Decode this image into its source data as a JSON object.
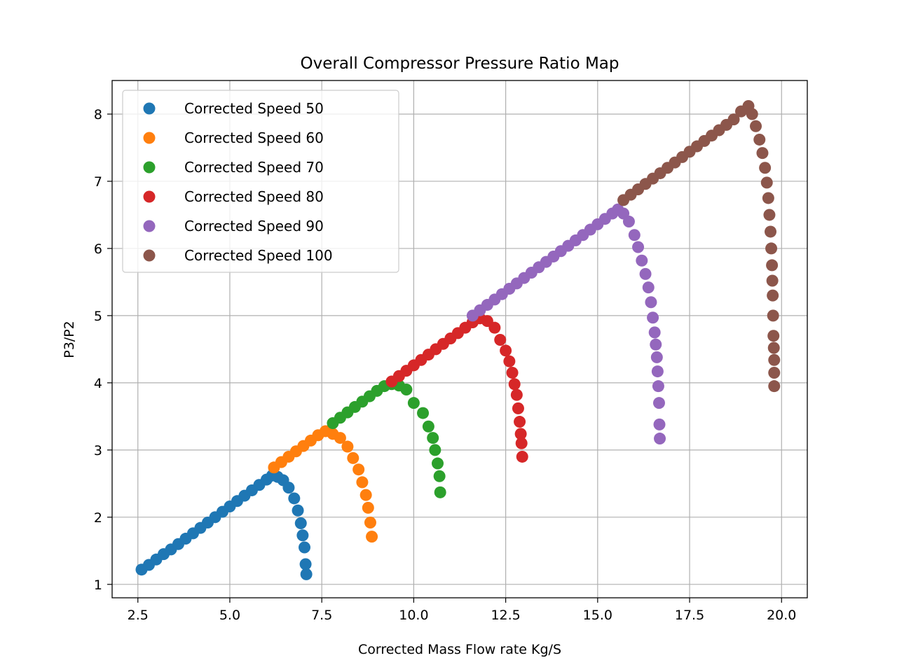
{
  "chart_data": {
    "type": "scatter",
    "title": "Overall Compressor Pressure Ratio Map",
    "xlabel": "Corrected Mass Flow rate Kg/S",
    "ylabel": "P3/P2",
    "xlim": [
      1.8,
      20.7
    ],
    "ylim": [
      0.8,
      8.5
    ],
    "xticks": [
      2.5,
      5.0,
      7.5,
      10.0,
      12.5,
      15.0,
      17.5,
      20.0
    ],
    "xtick_labels": [
      "2.5",
      "5.0",
      "7.5",
      "10.0",
      "12.5",
      "15.0",
      "17.5",
      "20.0"
    ],
    "yticks": [
      1,
      2,
      3,
      4,
      5,
      6,
      7,
      8
    ],
    "ytick_labels": [
      "1",
      "2",
      "3",
      "4",
      "5",
      "6",
      "7",
      "8"
    ],
    "grid": true,
    "legend_position": "top-left",
    "series": [
      {
        "name": "Corrected Speed 50",
        "color": "#1f77b4",
        "points": [
          [
            2.6,
            1.22
          ],
          [
            2.8,
            1.29
          ],
          [
            3.0,
            1.37
          ],
          [
            3.2,
            1.45
          ],
          [
            3.4,
            1.52
          ],
          [
            3.6,
            1.6
          ],
          [
            3.8,
            1.68
          ],
          [
            4.0,
            1.76
          ],
          [
            4.2,
            1.84
          ],
          [
            4.4,
            1.92
          ],
          [
            4.6,
            2.0
          ],
          [
            4.8,
            2.08
          ],
          [
            5.0,
            2.16
          ],
          [
            5.2,
            2.24
          ],
          [
            5.4,
            2.32
          ],
          [
            5.6,
            2.4
          ],
          [
            5.8,
            2.48
          ],
          [
            6.0,
            2.56
          ],
          [
            6.15,
            2.62
          ],
          [
            6.3,
            2.6
          ],
          [
            6.45,
            2.55
          ],
          [
            6.6,
            2.44
          ],
          [
            6.75,
            2.28
          ],
          [
            6.85,
            2.1
          ],
          [
            6.93,
            1.91
          ],
          [
            6.98,
            1.73
          ],
          [
            7.03,
            1.55
          ],
          [
            7.06,
            1.3
          ],
          [
            7.08,
            1.15
          ]
        ]
      },
      {
        "name": "Corrected Speed 60",
        "color": "#ff7f0e",
        "points": [
          [
            6.2,
            2.74
          ],
          [
            6.4,
            2.82
          ],
          [
            6.6,
            2.9
          ],
          [
            6.8,
            2.98
          ],
          [
            7.0,
            3.06
          ],
          [
            7.2,
            3.14
          ],
          [
            7.4,
            3.22
          ],
          [
            7.6,
            3.28
          ],
          [
            7.8,
            3.24
          ],
          [
            8.0,
            3.18
          ],
          [
            8.2,
            3.05
          ],
          [
            8.35,
            2.88
          ],
          [
            8.5,
            2.71
          ],
          [
            8.6,
            2.52
          ],
          [
            8.7,
            2.33
          ],
          [
            8.76,
            2.14
          ],
          [
            8.82,
            1.92
          ],
          [
            8.86,
            1.71
          ]
        ]
      },
      {
        "name": "Corrected Speed 70",
        "color": "#2ca02c",
        "points": [
          [
            7.8,
            3.4
          ],
          [
            8.0,
            3.48
          ],
          [
            8.2,
            3.56
          ],
          [
            8.4,
            3.64
          ],
          [
            8.6,
            3.72
          ],
          [
            8.8,
            3.8
          ],
          [
            9.0,
            3.88
          ],
          [
            9.2,
            3.95
          ],
          [
            9.4,
            3.98
          ],
          [
            9.6,
            3.96
          ],
          [
            9.8,
            3.9
          ],
          [
            10.0,
            3.7
          ],
          [
            10.25,
            3.55
          ],
          [
            10.4,
            3.35
          ],
          [
            10.52,
            3.18
          ],
          [
            10.58,
            3.0
          ],
          [
            10.65,
            2.8
          ],
          [
            10.7,
            2.61
          ],
          [
            10.72,
            2.37
          ]
        ]
      },
      {
        "name": "Corrected Speed 80",
        "color": "#d62728",
        "points": [
          [
            9.4,
            4.02
          ],
          [
            9.6,
            4.1
          ],
          [
            9.8,
            4.18
          ],
          [
            10.0,
            4.26
          ],
          [
            10.2,
            4.34
          ],
          [
            10.4,
            4.42
          ],
          [
            10.6,
            4.5
          ],
          [
            10.8,
            4.58
          ],
          [
            11.0,
            4.66
          ],
          [
            11.2,
            4.74
          ],
          [
            11.4,
            4.82
          ],
          [
            11.6,
            4.9
          ],
          [
            11.8,
            4.96
          ],
          [
            12.0,
            4.92
          ],
          [
            12.2,
            4.82
          ],
          [
            12.35,
            4.64
          ],
          [
            12.5,
            4.48
          ],
          [
            12.6,
            4.32
          ],
          [
            12.68,
            4.15
          ],
          [
            12.74,
            3.98
          ],
          [
            12.8,
            3.82
          ],
          [
            12.84,
            3.62
          ],
          [
            12.88,
            3.42
          ],
          [
            12.91,
            3.24
          ],
          [
            12.93,
            3.1
          ],
          [
            12.95,
            2.9
          ]
        ]
      },
      {
        "name": "Corrected Speed 90",
        "color": "#9467bd",
        "points": [
          [
            11.6,
            5.0
          ],
          [
            11.8,
            5.08
          ],
          [
            12.0,
            5.16
          ],
          [
            12.2,
            5.24
          ],
          [
            12.4,
            5.32
          ],
          [
            12.6,
            5.4
          ],
          [
            12.8,
            5.48
          ],
          [
            13.0,
            5.56
          ],
          [
            13.2,
            5.64
          ],
          [
            13.4,
            5.72
          ],
          [
            13.6,
            5.8
          ],
          [
            13.8,
            5.88
          ],
          [
            14.0,
            5.96
          ],
          [
            14.2,
            6.04
          ],
          [
            14.4,
            6.12
          ],
          [
            14.6,
            6.2
          ],
          [
            14.8,
            6.28
          ],
          [
            15.0,
            6.36
          ],
          [
            15.2,
            6.44
          ],
          [
            15.4,
            6.52
          ],
          [
            15.55,
            6.58
          ],
          [
            15.7,
            6.52
          ],
          [
            15.85,
            6.4
          ],
          [
            16.0,
            6.2
          ],
          [
            16.1,
            6.02
          ],
          [
            16.2,
            5.82
          ],
          [
            16.3,
            5.62
          ],
          [
            16.38,
            5.42
          ],
          [
            16.45,
            5.2
          ],
          [
            16.5,
            4.97
          ],
          [
            16.55,
            4.75
          ],
          [
            16.58,
            4.57
          ],
          [
            16.61,
            4.38
          ],
          [
            16.63,
            4.17
          ],
          [
            16.65,
            3.95
          ],
          [
            16.67,
            3.7
          ],
          [
            16.68,
            3.38
          ],
          [
            16.69,
            3.17
          ]
        ]
      },
      {
        "name": "Corrected Speed 100",
        "color": "#8c564b",
        "points": [
          [
            15.7,
            6.72
          ],
          [
            15.9,
            6.8
          ],
          [
            16.1,
            6.88
          ],
          [
            16.3,
            6.96
          ],
          [
            16.5,
            7.04
          ],
          [
            16.7,
            7.12
          ],
          [
            16.9,
            7.2
          ],
          [
            17.1,
            7.28
          ],
          [
            17.3,
            7.36
          ],
          [
            17.5,
            7.44
          ],
          [
            17.7,
            7.52
          ],
          [
            17.9,
            7.6
          ],
          [
            18.1,
            7.68
          ],
          [
            18.3,
            7.76
          ],
          [
            18.5,
            7.84
          ],
          [
            18.7,
            7.92
          ],
          [
            18.9,
            8.04
          ],
          [
            19.1,
            8.12
          ],
          [
            19.2,
            8.0
          ],
          [
            19.3,
            7.82
          ],
          [
            19.4,
            7.62
          ],
          [
            19.48,
            7.42
          ],
          [
            19.55,
            7.2
          ],
          [
            19.6,
            6.98
          ],
          [
            19.64,
            6.75
          ],
          [
            19.67,
            6.5
          ],
          [
            19.7,
            6.25
          ],
          [
            19.72,
            6.0
          ],
          [
            19.74,
            5.75
          ],
          [
            19.75,
            5.52
          ],
          [
            19.76,
            5.3
          ],
          [
            19.77,
            5.0
          ],
          [
            19.78,
            4.7
          ],
          [
            19.79,
            4.52
          ],
          [
            19.8,
            4.34
          ],
          [
            19.8,
            4.15
          ],
          [
            19.8,
            3.95
          ]
        ]
      }
    ]
  }
}
